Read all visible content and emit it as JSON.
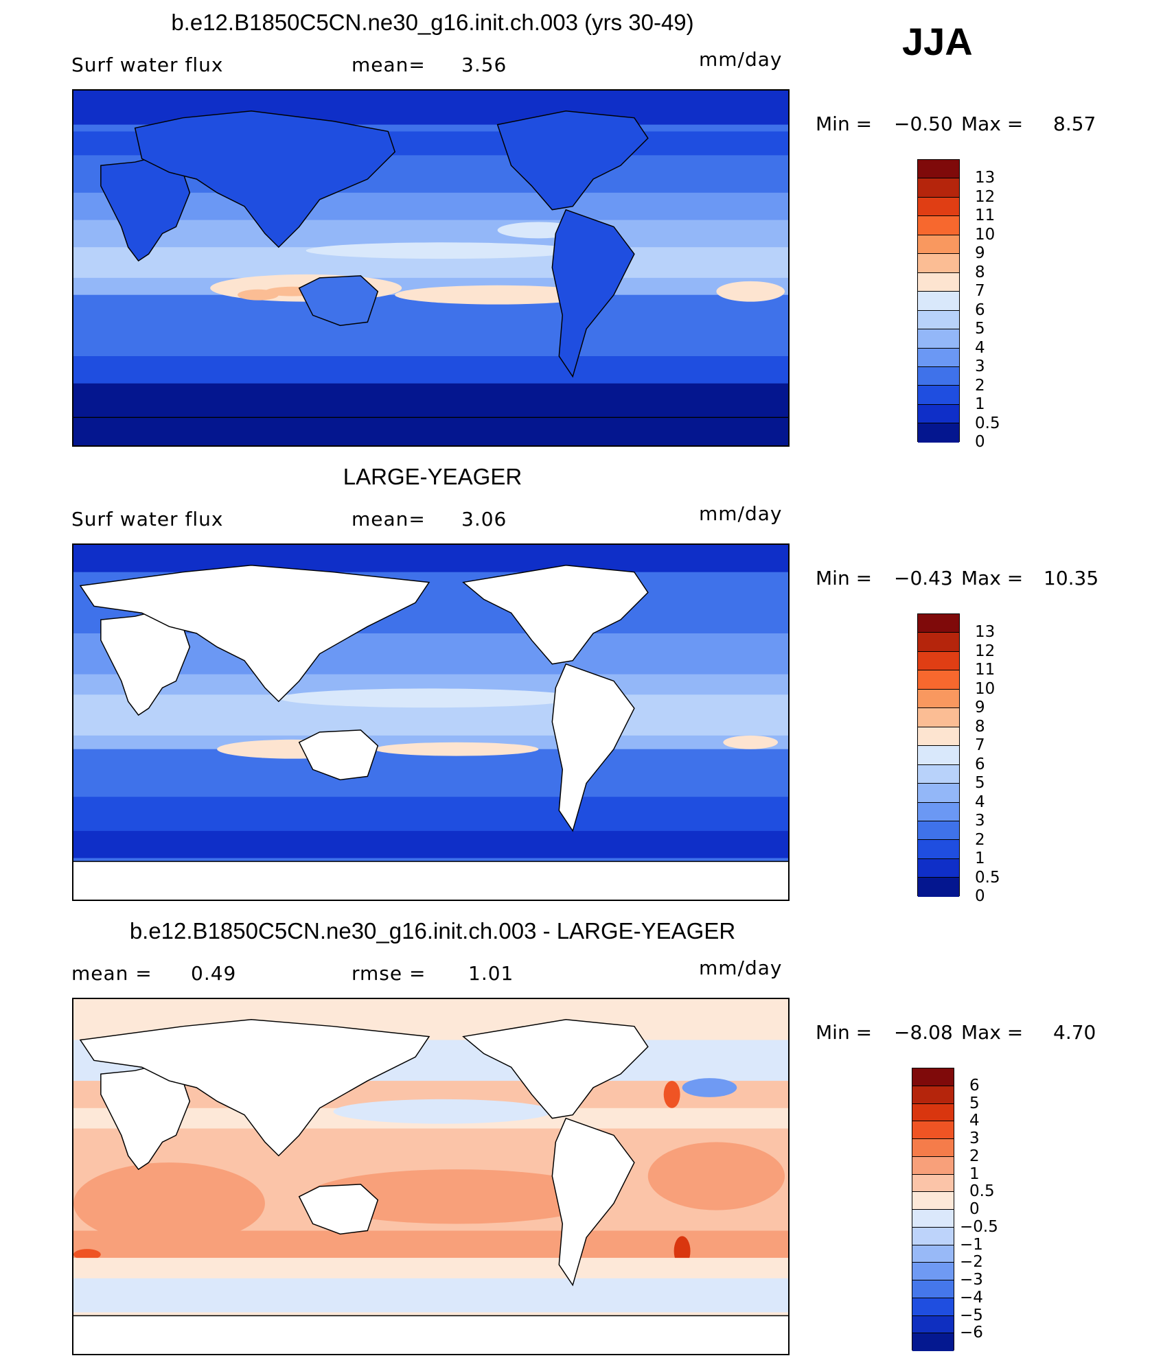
{
  "season": "JJA",
  "chart_data": [
    {
      "type": "heatmap",
      "title": "b.e12.B1850C5CN.ne30_g16.init.ch.003 (yrs 30-49)",
      "left_label": "Surf water flux",
      "stat1_label": "mean=",
      "stat1_value": "3.56",
      "units": "mm/day",
      "min_label": "Min =",
      "min_value": "−0.50",
      "max_label": "Max =",
      "max_value": "8.57",
      "levels": [
        "13",
        "12",
        "11",
        "10",
        "9",
        "8",
        "7",
        "6",
        "5",
        "4",
        "3",
        "2",
        "1",
        "0.5",
        "0"
      ],
      "colors": [
        "#7f0a0a",
        "#b5250c",
        "#e03e14",
        "#f7682e",
        "#f9985f",
        "#fbbd94",
        "#fde4d0",
        "#d9e8fb",
        "#b8d2fa",
        "#93b7f8",
        "#6b98f4",
        "#3f72ea",
        "#1f4ee0",
        "#0f2fc8",
        "#04168f"
      ],
      "masked_land": false
    },
    {
      "type": "heatmap",
      "title": "LARGE-YEAGER",
      "left_label": "Surf water flux",
      "stat1_label": "mean=",
      "stat1_value": "3.06",
      "units": "mm/day",
      "min_label": "Min =",
      "min_value": "−0.43",
      "max_label": "Max =",
      "max_value": "10.35",
      "levels": [
        "13",
        "12",
        "11",
        "10",
        "9",
        "8",
        "7",
        "6",
        "5",
        "4",
        "3",
        "2",
        "1",
        "0.5",
        "0"
      ],
      "colors": [
        "#7f0a0a",
        "#b5250c",
        "#e03e14",
        "#f7682e",
        "#f9985f",
        "#fbbd94",
        "#fde4d0",
        "#d9e8fb",
        "#b8d2fa",
        "#93b7f8",
        "#6b98f4",
        "#3f72ea",
        "#1f4ee0",
        "#0f2fc8",
        "#04168f"
      ],
      "masked_land": true
    },
    {
      "type": "heatmap",
      "title": "b.e12.B1850C5CN.ne30_g16.init.ch.003 - LARGE-YEAGER",
      "left_label": "mean =",
      "left_value": "0.49",
      "stat1_label": "rmse =",
      "stat1_value": "1.01",
      "units": "mm/day",
      "min_label": "Min =",
      "min_value": "−8.08",
      "max_label": "Max =",
      "max_value": "4.70",
      "levels": [
        "6",
        "5",
        "4",
        "3",
        "2",
        "1",
        "0.5",
        "0",
        "−0.5",
        "−1",
        "−2",
        "−3",
        "−4",
        "−5",
        "−6"
      ],
      "colors": [
        "#7f0a0a",
        "#b5250c",
        "#d9360f",
        "#ef5424",
        "#f57c4a",
        "#f8a07a",
        "#fbc4a8",
        "#fde8d8",
        "#dbe8fb",
        "#bdd3fa",
        "#98b9f7",
        "#6f9af3",
        "#4577ea",
        "#1f4ee0",
        "#0f2fc0",
        "#041890"
      ],
      "masked_land": true
    }
  ]
}
